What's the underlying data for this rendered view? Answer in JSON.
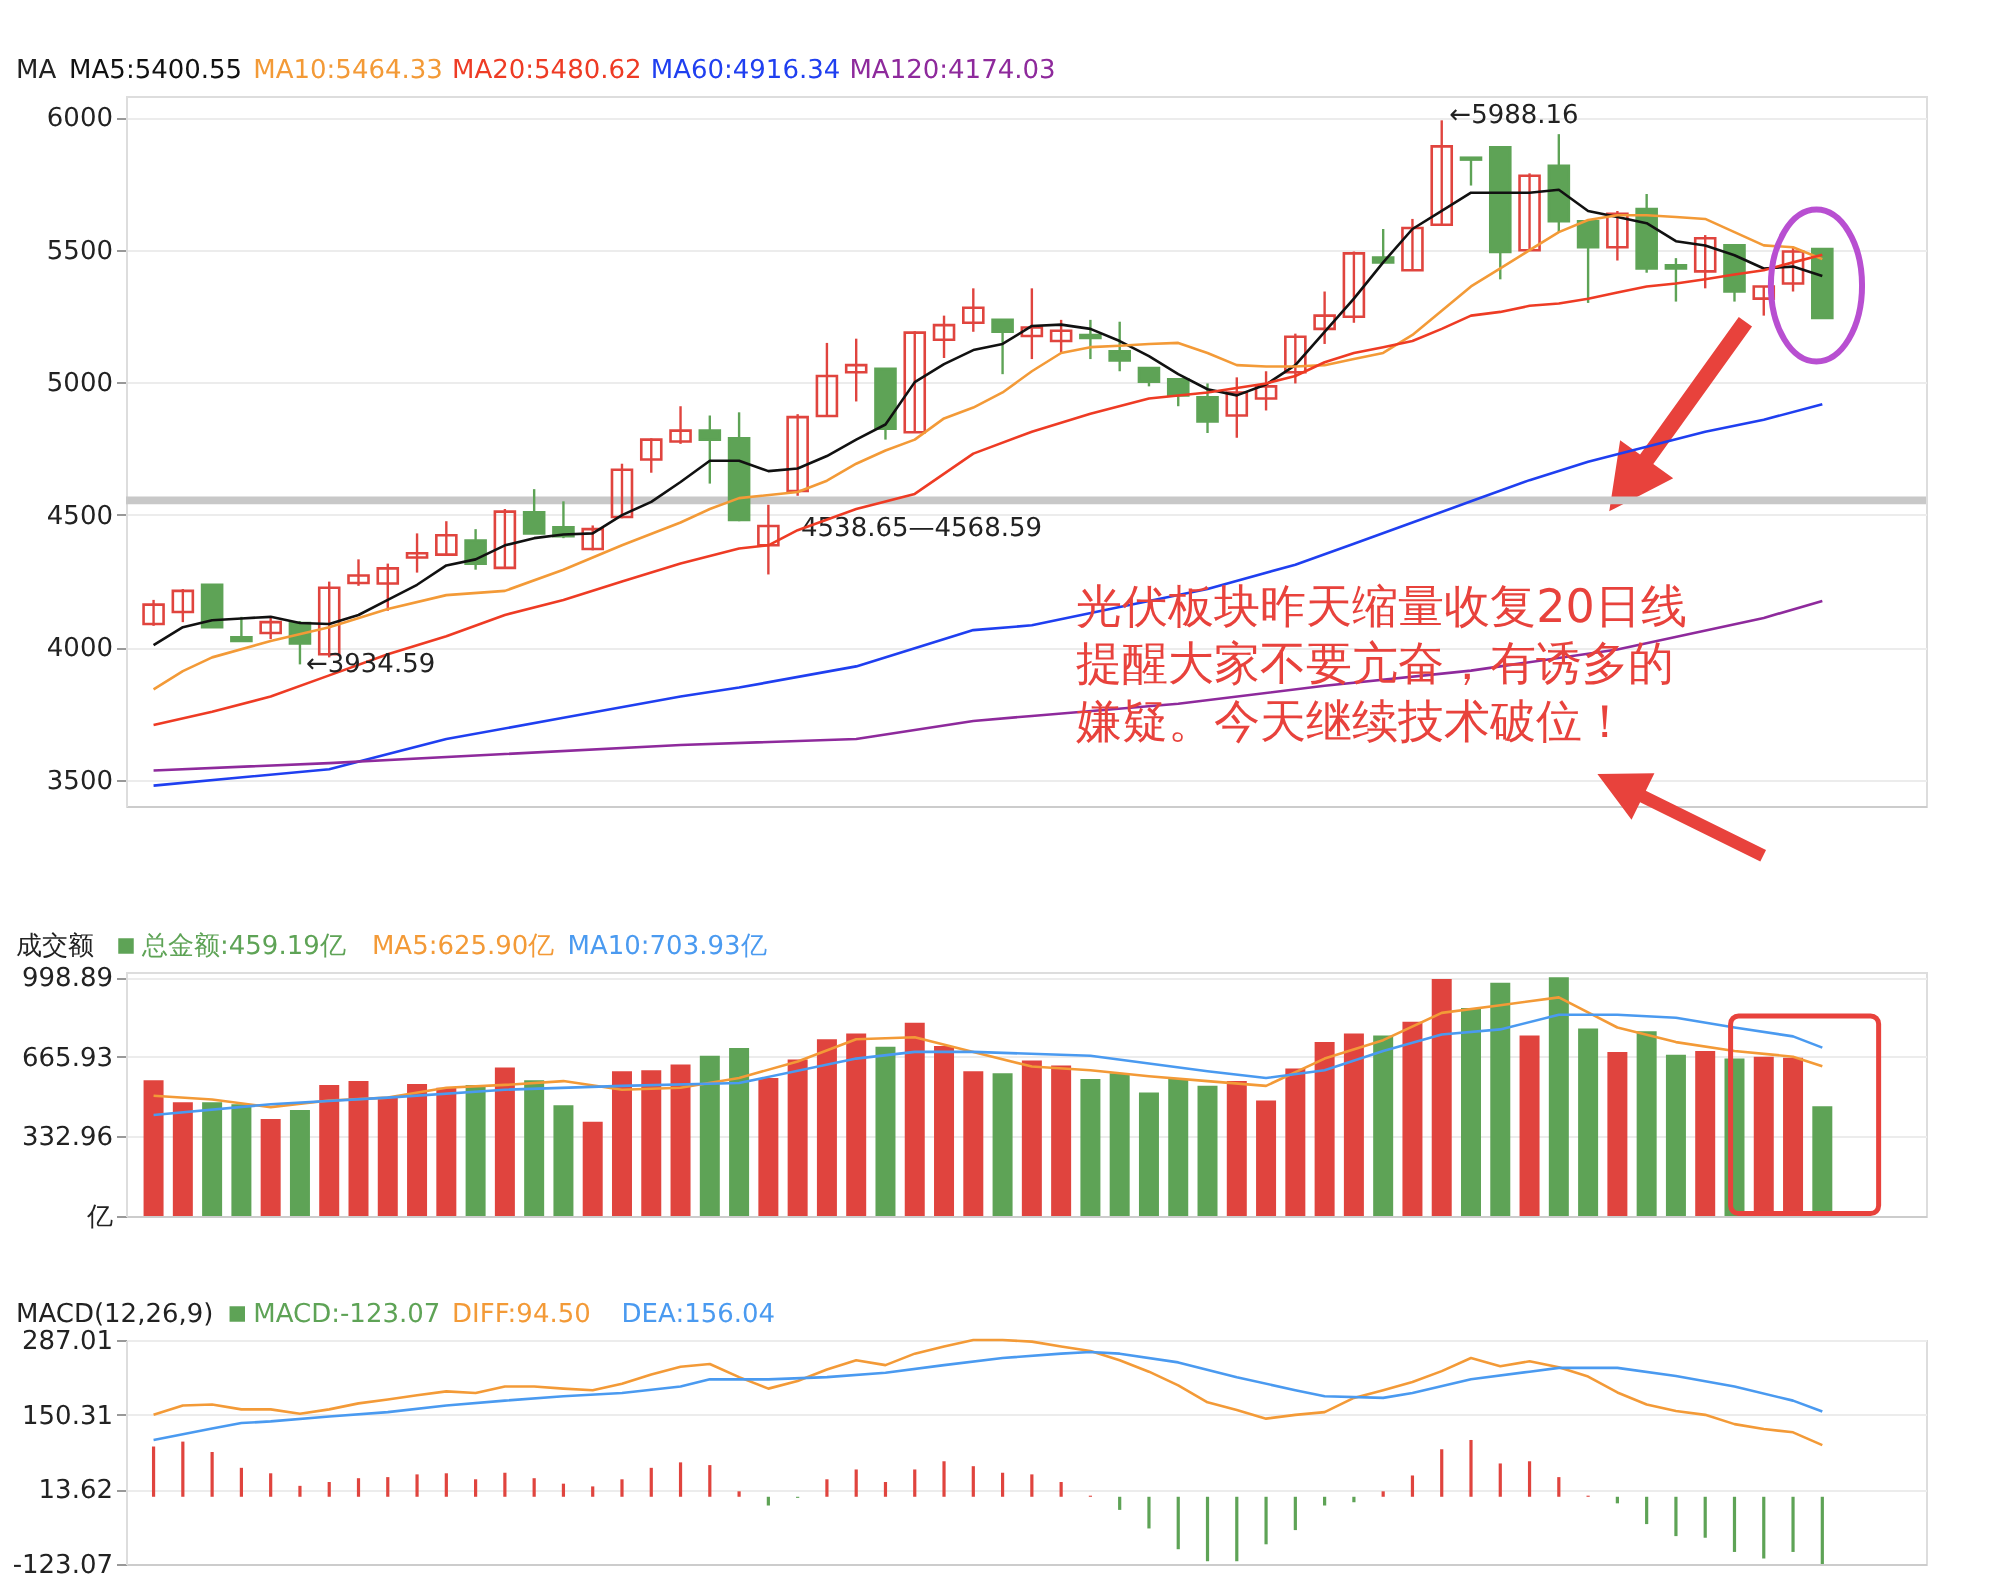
{
  "chart_data": [
    {
      "type": "candlestick",
      "title": "MA",
      "legend": "top left",
      "grid": "y",
      "tick_labels": "y",
      "categories": [
        null,
        null,
        null,
        null,
        null,
        null,
        null,
        null,
        null,
        null,
        null,
        null,
        null,
        null,
        null,
        null,
        null,
        null,
        null,
        null,
        null,
        null,
        null,
        null,
        null,
        null,
        null,
        null,
        null,
        null,
        null,
        null,
        null,
        null,
        null,
        null,
        null,
        null,
        null,
        null,
        null,
        null,
        null,
        null,
        null,
        null,
        null,
        null,
        null,
        null,
        null,
        null,
        null,
        null,
        null,
        null,
        null,
        null
      ],
      "ylim": [
        3400,
        6080
      ],
      "yticks": [
        3500,
        4000,
        4500,
        5000,
        5500,
        6000
      ],
      "ohlc": [
        [
          4087,
          4178,
          4080,
          4160
        ],
        [
          4132,
          4219,
          4094,
          4212
        ],
        [
          4235,
          4235,
          4075,
          4075
        ],
        [
          4037,
          4114,
          4023,
          4023
        ],
        [
          4053,
          4114,
          4030,
          4094
        ],
        [
          4091,
          4098,
          3934.59,
          4014
        ],
        [
          3973,
          4247,
          3961,
          4224
        ],
        [
          4242,
          4331,
          4231,
          4270
        ],
        [
          4240,
          4315,
          4137,
          4297
        ],
        [
          4338,
          4429,
          4281,
          4354
        ],
        [
          4349,
          4475,
          4345,
          4422
        ],
        [
          4402,
          4445,
          4292,
          4315
        ],
        [
          4299,
          4521,
          4299,
          4511
        ],
        [
          4509,
          4596,
          4429,
          4429
        ],
        [
          4452,
          4550,
          4411,
          4418
        ],
        [
          4370,
          4459,
          4365,
          4445
        ],
        [
          4491,
          4692,
          4486,
          4669
        ],
        [
          4708,
          4788,
          4658,
          4783
        ],
        [
          4776,
          4909,
          4767,
          4817
        ],
        [
          4817,
          4874,
          4617,
          4783
        ],
        [
          4788,
          4886,
          4475,
          4480
        ],
        [
          4384,
          4537,
          4274,
          4457
        ],
        [
          4589,
          4879,
          4571,
          4868
        ],
        [
          4872,
          5148,
          4872,
          5023
        ],
        [
          5037,
          5164,
          4927,
          5064
        ],
        [
          5050,
          5050,
          4783,
          4824
        ],
        [
          4811,
          5192,
          4811,
          5187
        ],
        [
          5160,
          5251,
          5091,
          5215
        ],
        [
          5224,
          5354,
          5190,
          5281
        ],
        [
          5235,
          5235,
          5030,
          5190
        ],
        [
          5174,
          5354,
          5087,
          5206
        ],
        [
          5155,
          5235,
          5110,
          5194
        ],
        [
          5178,
          5235,
          5087,
          5167
        ],
        [
          5116,
          5228,
          5041,
          5082
        ],
        [
          5053,
          5053,
          4984,
          5002
        ],
        [
          5011,
          5011,
          4909,
          4950
        ],
        [
          4943,
          4995,
          4808,
          4852
        ],
        [
          4874,
          5018,
          4790,
          4961
        ],
        [
          4938,
          5041,
          4893,
          4984
        ],
        [
          5037,
          5183,
          4995,
          5171
        ],
        [
          5201,
          5342,
          5144,
          5251
        ],
        [
          5247,
          5493,
          5224,
          5486
        ],
        [
          5470,
          5578,
          5452,
          5452
        ],
        [
          5422,
          5616,
          5422,
          5582
        ],
        [
          5594,
          5988.16,
          5594,
          5890
        ],
        [
          5847,
          5847,
          5742,
          5840
        ],
        [
          5886,
          5886,
          5388,
          5491
        ],
        [
          5498,
          5788,
          5498,
          5779
        ],
        [
          5817,
          5936,
          5566,
          5607
        ],
        [
          5607,
          5607,
          5299,
          5509
        ],
        [
          5509,
          5646,
          5459,
          5635
        ],
        [
          5653,
          5710,
          5413,
          5429
        ],
        [
          5441,
          5468,
          5304,
          5429
        ],
        [
          5418,
          5555,
          5354,
          5543
        ],
        [
          5516,
          5516,
          5304,
          5342
        ],
        [
          5315,
          5361,
          5251,
          5361
        ],
        [
          5372,
          5509,
          5342,
          5493
        ],
        [
          5502,
          5502,
          5242,
          5242
        ]
      ],
      "colors": [
        "#e0443e",
        "#e0443e",
        "#5ea356",
        "#5ea356",
        "#e0443e",
        "#5ea356",
        "#e0443e",
        "#e0443e",
        "#e0443e",
        "#e0443e",
        "#e0443e",
        "#5ea356",
        "#e0443e",
        "#5ea356",
        "#5ea356",
        "#e0443e",
        "#e0443e",
        "#e0443e",
        "#e0443e",
        "#5ea356",
        "#5ea356",
        "#e0443e",
        "#e0443e",
        "#e0443e",
        "#e0443e",
        "#5ea356",
        "#e0443e",
        "#e0443e",
        "#e0443e",
        "#5ea356",
        "#e0443e",
        "#e0443e",
        "#5ea356",
        "#5ea356",
        "#5ea356",
        "#5ea356",
        "#5ea356",
        "#e0443e",
        "#e0443e",
        "#e0443e",
        "#e0443e",
        "#e0443e",
        "#5ea356",
        "#e0443e",
        "#e0443e",
        "#5ea356",
        "#5ea356",
        "#e0443e",
        "#5ea356",
        "#5ea356",
        "#e0443e",
        "#5ea356",
        "#5ea356",
        "#e0443e",
        "#5ea356",
        "#e0443e",
        "#e0443e",
        "#5ea356"
      ],
      "series": [
        {
          "name": "MA5:5400.55",
          "type": "line",
          "color": "#111111",
          "values": [
            4007,
            4075,
            4101,
            4108,
            4114,
            4091,
            4087,
            4121,
            4178,
            4235,
            4308,
            4331,
            4384,
            4411,
            4425,
            4429,
            4498,
            4548,
            4623,
            4703,
            4703,
            4664,
            4674,
            4721,
            4783,
            4840,
            5000,
            5068,
            5121,
            5144,
            5212,
            5217,
            5201,
            5155,
            5098,
            5030,
            4973,
            4950,
            4991,
            5064,
            5190,
            5315,
            5452,
            5578,
            5646,
            5715,
            5715,
            5715,
            5726,
            5646,
            5623,
            5600,
            5532,
            5516,
            5479,
            5429,
            5436,
            5400.55
          ]
        },
        {
          "name": "MA10:5464.33",
          "type": "line",
          "color": "#f39a37",
          "values": [
            3840,
            3909,
            3961,
            null,
            4023,
            null,
            4075,
            null,
            4144,
            null,
            4196,
            null,
            4212,
            null,
            4292,
            null,
            4384,
            null,
            4470,
            4521,
            4562,
            null,
            4585,
            4628,
            4692,
            4742,
            4783,
            4863,
            4904,
            4961,
            5041,
            5110,
            5132,
            5137,
            5144,
            5148,
            5110,
            5064,
            5059,
            5059,
            5064,
            5087,
            5110,
            5178,
            5269,
            5361,
            5429,
            5498,
            5566,
            5612,
            5630,
            5630,
            5623,
            5616,
            5566,
            5516,
            5509,
            5464.33
          ]
        },
        {
          "name": "MA20:5480.62",
          "type": "line",
          "color": "#ee3b24",
          "values": [
            3706,
            null,
            3756,
            null,
            3813,
            null,
            3893,
            null,
            3973,
            null,
            4041,
            null,
            4121,
            null,
            4178,
            null,
            4247,
            null,
            4315,
            null,
            4372,
            4384,
            4441,
            null,
            4521,
            null,
            4578,
            null,
            4730,
            null,
            4813,
            null,
            4881,
            null,
            4938,
            null,
            4961,
            null,
            4995,
            5023,
            5075,
            5110,
            5132,
            5155,
            5201,
            5251,
            5265,
            5288,
            5297,
            5315,
            5338,
            5361,
            5372,
            5388,
            5406,
            5422,
            5452,
            5480.62
          ]
        },
        {
          "name": "MA60:4916.34",
          "type": "line",
          "color": "#1f3ff0",
          "values": [
            3477,
            null,
            null,
            null,
            null,
            null,
            3539,
            null,
            null,
            null,
            3653,
            null,
            null,
            null,
            3733,
            null,
            null,
            null,
            3813,
            null,
            3847,
            null,
            null,
            null,
            3927,
            null,
            null,
            null,
            4064,
            null,
            4082,
            null,
            null,
            4151,
            null,
            null,
            4219,
            null,
            null,
            4311,
            null,
            4390,
            null,
            4470,
            null,
            4550,
            null,
            4630,
            null,
            4699,
            null,
            4756,
            null,
            4813,
            null,
            4858,
            null,
            4916.34
          ]
        },
        {
          "name": "MA120:4174.03",
          "type": "line",
          "color": "#8e2a9c",
          "values": [
            3534,
            null,
            null,
            null,
            null,
            null,
            3562,
            null,
            null,
            null,
            null,
            null,
            3596,
            null,
            null,
            null,
            null,
            null,
            3630,
            null,
            null,
            null,
            null,
            null,
            3653,
            null,
            null,
            null,
            3721,
            null,
            3740,
            null,
            null,
            null,
            null,
            3786,
            null,
            null,
            null,
            null,
            3854,
            null,
            null,
            null,
            null,
            3911,
            null,
            null,
            null,
            null,
            3991,
            null,
            null,
            null,
            null,
            4110,
            null,
            4174.03
          ]
        }
      ],
      "bands": [
        {
          "axis": "y",
          "from": 4538.65,
          "to": 4568.59,
          "label": "4538.65—4568.59",
          "color": "#c8c8c8"
        }
      ],
      "annotations": [
        {
          "text": "←3934.59",
          "y": 3934.59
        },
        "←5988.16",
        "光伏板块昨天缩量收复20日线提醒大家不要亢奋，有诱多的嫌疑。今天继续技术破位！"
      ]
    },
    {
      "type": "bar",
      "title": "成交额",
      "legend": "top left",
      "grid": "y",
      "tick_labels": "y",
      "categories": [
        null,
        null,
        null,
        null,
        null,
        null,
        null,
        null,
        null,
        null,
        null,
        null,
        null,
        null,
        null,
        null,
        null,
        null,
        null,
        null,
        null,
        null,
        null,
        null,
        null,
        null,
        null,
        null,
        null,
        null,
        null,
        null,
        null,
        null,
        null,
        null,
        null,
        null,
        null,
        null,
        null,
        null,
        null,
        null,
        null,
        null,
        null,
        null,
        null,
        null,
        null,
        null,
        null,
        null,
        null,
        null,
        null,
        null
      ],
      "ylim": [
        0,
        1020
      ],
      "yticks": [
        {
          "value": 0,
          "label": "亿"
        },
        332.96,
        665.93,
        998.89
      ],
      "series": [
        {
          "name": "总金额:459.19亿",
          "color": "#5ea356",
          "colors": [
            "#e0443e",
            "#e0443e",
            "#5ea356",
            "#5ea356",
            "#e0443e",
            "#5ea356",
            "#e0443e",
            "#e0443e",
            "#e0443e",
            "#e0443e",
            "#e0443e",
            "#5ea356",
            "#e0443e",
            "#5ea356",
            "#5ea356",
            "#e0443e",
            "#e0443e",
            "#e0443e",
            "#e0443e",
            "#5ea356",
            "#5ea356",
            "#e0443e",
            "#e0443e",
            "#e0443e",
            "#e0443e",
            "#5ea356",
            "#e0443e",
            "#e0443e",
            "#e0443e",
            "#5ea356",
            "#e0443e",
            "#e0443e",
            "#5ea356",
            "#5ea356",
            "#5ea356",
            "#5ea356",
            "#5ea356",
            "#e0443e",
            "#e0443e",
            "#e0443e",
            "#e0443e",
            "#e0443e",
            "#5ea356",
            "#e0443e",
            "#e0443e",
            "#5ea356",
            "#5ea356",
            "#e0443e",
            "#5ea356",
            "#5ea356",
            "#e0443e",
            "#5ea356",
            "#5ea356",
            "#e0443e",
            "#5ea356",
            "#e0443e",
            "#e0443e",
            "#5ea356"
          ],
          "values": [
            568,
            475,
            475,
            467,
            406,
            443,
            548,
            564,
            495,
            552,
            536,
            548,
            621,
            568,
            463,
            394,
            605,
            609,
            633,
            670,
            702,
            577,
            654,
            739,
            763,
            707,
            808,
            711,
            605,
            597,
            650,
            629,
            573,
            597,
            516,
            573,
            544,
            564,
            483,
            617,
            727,
            763,
            755,
            812,
            991,
            869,
            975,
            755,
            998,
            784,
            686,
            772,
            674,
            690,
            658,
            666,
            662,
            459.19
          ]
        },
        {
          "name": "MA5:625.90亿",
          "type": "line",
          "color": "#f39a37",
          "values": [
            503,
            null,
            487,
            null,
            455,
            null,
            483,
            null,
            495,
            null,
            536,
            null,
            548,
            null,
            564,
            null,
            528,
            null,
            536,
            null,
            577,
            null,
            646,
            null,
            739,
            null,
            747,
            null,
            686,
            null,
            625,
            null,
            609,
            null,
            584,
            null,
            564,
            null,
            544,
            null,
            658,
            null,
            735,
            null,
            849,
            null,
            881,
            null,
            914,
            null,
            788,
            null,
            727,
            null,
            690,
            null,
            666,
            625.9
          ]
        },
        {
          "name": "MA10:703.93亿",
          "type": "line",
          "color": "#4a9af0",
          "values": [
            422,
            null,
            null,
            null,
            467,
            null,
            null,
            null,
            495,
            null,
            null,
            null,
            528,
            null,
            null,
            null,
            544,
            null,
            null,
            null,
            556,
            null,
            null,
            null,
            658,
            null,
            686,
            null,
            686,
            null,
            null,
            null,
            670,
            null,
            null,
            null,
            605,
            null,
            577,
            null,
            609,
            null,
            690,
            null,
            759,
            null,
            780,
            null,
            841,
            null,
            841,
            null,
            829,
            null,
            788,
            null,
            751,
            703.93
          ]
        }
      ]
    },
    {
      "type": "bar",
      "title": "MACD(12,26,9)",
      "legend": "top left",
      "grid": "y",
      "tick_labels": "y",
      "categories": [
        null,
        null,
        null,
        null,
        null,
        null,
        null,
        null,
        null,
        null,
        null,
        null,
        null,
        null,
        null,
        null,
        null,
        null,
        null,
        null,
        null,
        null,
        null,
        null,
        null,
        null,
        null,
        null,
        null,
        null,
        null,
        null,
        null,
        null,
        null,
        null,
        null,
        null,
        null,
        null,
        null,
        null,
        null,
        null,
        null,
        null,
        null,
        null,
        null,
        null,
        null,
        null,
        null,
        null,
        null,
        null,
        null,
        null
      ],
      "ylim": [
        -123.07,
        287.01
      ],
      "yticks": [
        -123.07,
        13.62,
        150.31,
        287.01
      ],
      "series": [
        {
          "name": "MACD:-123.07",
          "color": "#5ea356",
          "colors": [
            "#e0443e",
            "#e0443e",
            "#e0443e",
            "#e0443e",
            "#e0443e",
            "#e0443e",
            "#e0443e",
            "#e0443e",
            "#e0443e",
            "#e0443e",
            "#e0443e",
            "#e0443e",
            "#e0443e",
            "#e0443e",
            "#e0443e",
            "#e0443e",
            "#e0443e",
            "#e0443e",
            "#e0443e",
            "#e0443e",
            "#e0443e",
            "#5ea356",
            "#5ea356",
            "#e0443e",
            "#e0443e",
            "#e0443e",
            "#e0443e",
            "#e0443e",
            "#e0443e",
            "#e0443e",
            "#e0443e",
            "#e0443e",
            "#e0443e",
            "#5ea356",
            "#5ea356",
            "#5ea356",
            "#5ea356",
            "#5ea356",
            "#5ea356",
            "#5ea356",
            "#5ea356",
            "#5ea356",
            "#e0443e",
            "#e0443e",
            "#e0443e",
            "#e0443e",
            "#e0443e",
            "#e0443e",
            "#e0443e",
            "#e0443e",
            "#5ea356",
            "#5ea356",
            "#5ea356",
            "#5ea356",
            "#5ea356",
            "#5ea356",
            "#5ea356",
            "#5ea356"
          ],
          "values": [
            92,
            101,
            82,
            53,
            43,
            20,
            27,
            34,
            36,
            41,
            43,
            32,
            44,
            34,
            24,
            19,
            32,
            53,
            63,
            58,
            10,
            -16,
            -2,
            32,
            50,
            27,
            50,
            65,
            56,
            44,
            41,
            27,
            2,
            -24,
            -58,
            -96,
            -118,
            -118,
            -87,
            -61,
            -16,
            -10,
            10,
            39,
            87,
            104,
            61,
            65,
            36,
            2,
            -12,
            -50,
            -72,
            -75,
            -101,
            -113,
            -101,
            -123.07
          ]
        },
        {
          "name": "DIFF:94.50",
          "type": "line",
          "color": "#f39a37",
          "values": [
            150,
            167,
            169,
            160,
            160,
            152,
            160,
            171,
            178,
            186,
            193,
            190,
            202,
            202,
            198,
            195,
            207,
            224,
            238,
            243,
            219,
            198,
            212,
            233,
            250,
            241,
            262,
            275,
            287,
            287,
            284,
            275,
            267,
            250,
            229,
            204,
            173,
            159,
            143,
            150,
            155,
            181,
            195,
            210,
            230,
            254,
            239,
            248,
            237,
            220,
            191,
            169,
            157,
            150,
            133,
            124,
            118,
            94.5
          ]
        },
        {
          "name": "DEA:156.04",
          "type": "line",
          "color": "#4a9af0",
          "values": [
            104,
            null,
            125,
            135,
            138,
            null,
            147,
            null,
            155,
            null,
            167,
            null,
            176,
            null,
            184,
            null,
            190,
            null,
            202,
            215,
            null,
            215,
            null,
            219,
            null,
            227,
            null,
            241,
            null,
            254,
            null,
            262,
            265,
            262,
            null,
            246,
            null,
            219,
            null,
            195,
            184,
            null,
            181,
            190,
            null,
            215,
            null,
            229,
            236,
            null,
            236,
            null,
            221,
            null,
            202,
            null,
            176,
            156.04
          ]
        }
      ]
    }
  ]
}
